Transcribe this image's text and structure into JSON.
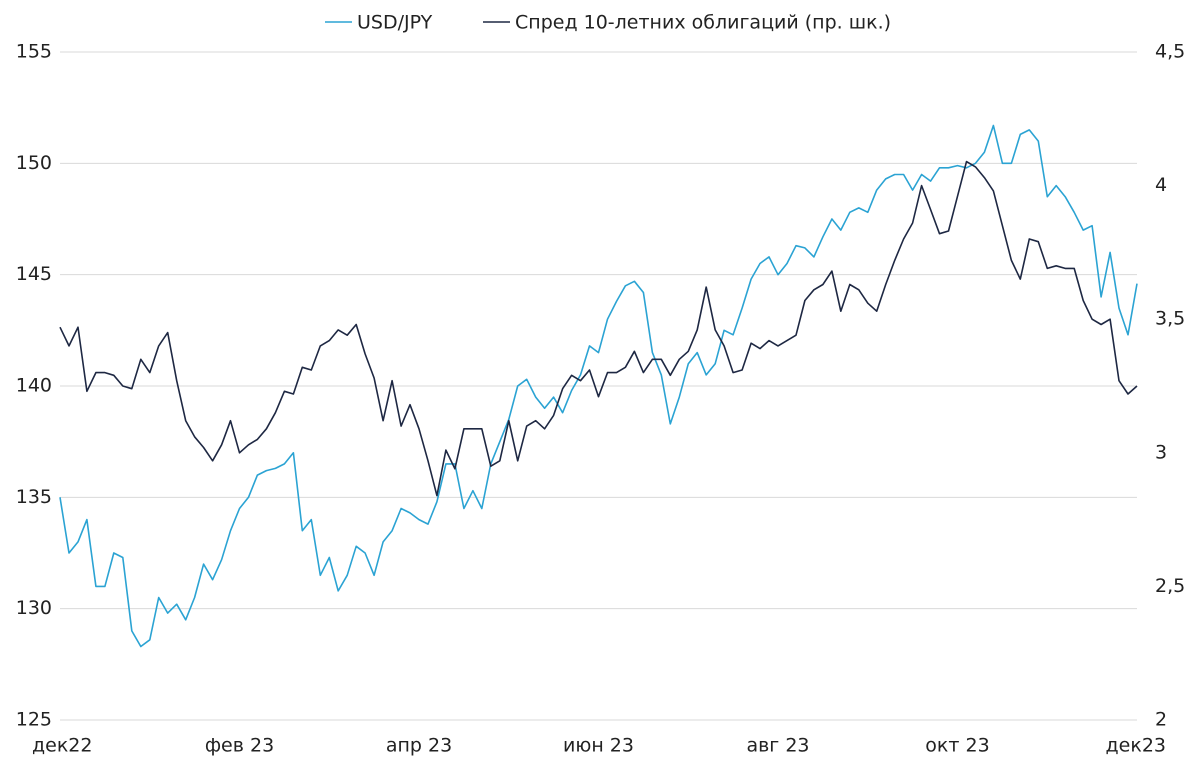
{
  "chart_data": {
    "type": "line",
    "categories": [
      "дек22",
      null,
      null,
      null,
      null,
      null,
      null,
      null,
      null,
      null,
      null,
      null,
      null,
      null,
      null,
      null,
      null,
      null,
      null,
      null,
      "фев 23",
      null,
      null,
      null,
      null,
      null,
      null,
      null,
      null,
      null,
      null,
      null,
      null,
      null,
      null,
      null,
      null,
      null,
      null,
      null,
      "апр 23",
      null,
      null,
      null,
      null,
      null,
      null,
      null,
      null,
      null,
      null,
      null,
      null,
      null,
      null,
      null,
      null,
      null,
      null,
      null,
      "июн 23",
      null,
      null,
      null,
      null,
      null,
      null,
      null,
      null,
      null,
      null,
      null,
      null,
      null,
      null,
      null,
      null,
      null,
      null,
      null,
      "авг 23",
      null,
      null,
      null,
      null,
      null,
      null,
      null,
      null,
      null,
      null,
      null,
      null,
      null,
      null,
      null,
      null,
      null,
      null,
      null,
      "окт 23",
      null,
      null,
      null,
      null,
      null,
      null,
      null,
      null,
      null,
      null,
      null,
      null,
      null,
      null,
      null,
      null,
      null,
      null,
      null,
      "дек23"
    ],
    "series": [
      {
        "name": "USD/JPY",
        "color": "#2ba3d3",
        "values": [
          135,
          132.5,
          133,
          134,
          131,
          131,
          132.5,
          132.3,
          129,
          128.3,
          128.6,
          130.5,
          129.8,
          130.2,
          129.5,
          130.5,
          132,
          131.3,
          132.2,
          133.5,
          134.5,
          135,
          136,
          136.2,
          136.3,
          136.5,
          137,
          133.5,
          134,
          131.5,
          132.3,
          130.8,
          131.5,
          132.8,
          132.5,
          131.5,
          133,
          133.5,
          134.5,
          134.3,
          134,
          133.8,
          134.8,
          136.5,
          136.5,
          134.5,
          135.3,
          134.5,
          136.5,
          137.5,
          138.5,
          140,
          140.3,
          139.5,
          139,
          139.5,
          138.8,
          139.8,
          140.5,
          141.8,
          141.5,
          143,
          143.8,
          144.5,
          144.7,
          144.2,
          141.5,
          140.5,
          138.3,
          139.5,
          141,
          141.5,
          140.5,
          141,
          142.5,
          142.3,
          143.5,
          144.8,
          145.5,
          145.8,
          145,
          145.5,
          146.3,
          146.2,
          145.8,
          146.7,
          147.5,
          147,
          147.8,
          148,
          147.8,
          148.8,
          149.3,
          149.5,
          149.5,
          148.8,
          149.5,
          149.2,
          149.8,
          149.8,
          149.9,
          149.8,
          150,
          150.5,
          151.7,
          150,
          150,
          151.3,
          151.5,
          151,
          148.5,
          149,
          148.5,
          147.8,
          147,
          147.2,
          144,
          146,
          143.5,
          142.3,
          144.6
        ]
      },
      {
        "name": "Спред 10-летних облигаций (пр. шк.)",
        "color": "#1e2843",
        "axis": "y2",
        "values": [
          3.47,
          3.4,
          3.47,
          3.23,
          3.3,
          3.3,
          3.29,
          3.25,
          3.24,
          3.35,
          3.3,
          3.4,
          3.45,
          3.27,
          3.12,
          3.06,
          3.02,
          2.97,
          3.03,
          3.12,
          3,
          3.03,
          3.05,
          3.09,
          3.15,
          3.23,
          3.22,
          3.32,
          3.31,
          3.4,
          3.42,
          3.46,
          3.44,
          3.48,
          3.37,
          3.28,
          3.12,
          3.27,
          3.1,
          3.18,
          3.09,
          2.97,
          2.84,
          3.01,
          2.94,
          3.09,
          3.09,
          3.09,
          2.95,
          2.97,
          3.12,
          2.97,
          3.1,
          3.12,
          3.09,
          3.14,
          3.24,
          3.29,
          3.27,
          3.31,
          3.21,
          3.3,
          3.3,
          3.32,
          3.38,
          3.3,
          3.35,
          3.35,
          3.29,
          3.35,
          3.38,
          3.46,
          3.62,
          3.46,
          3.4,
          3.3,
          3.31,
          3.41,
          3.39,
          3.42,
          3.4,
          3.42,
          3.44,
          3.57,
          3.61,
          3.63,
          3.68,
          3.53,
          3.63,
          3.61,
          3.56,
          3.53,
          3.63,
          3.72,
          3.8,
          3.86,
          4,
          3.91,
          3.82,
          3.83,
          3.96,
          4.09,
          4.07,
          4.03,
          3.98,
          3.85,
          3.72,
          3.65,
          3.8,
          3.79,
          3.69,
          3.7,
          3.69,
          3.69,
          3.57,
          3.5,
          3.48,
          3.5,
          3.27,
          3.22,
          3.25
        ]
      }
    ],
    "ylim": [
      125,
      155
    ],
    "yticks": [
      125,
      130,
      135,
      140,
      145,
      150,
      155
    ],
    "y2lim": [
      2,
      4.5
    ],
    "y2ticks": [
      2,
      {
        "value": 2.5,
        "label": "2,5"
      },
      3,
      {
        "value": 3.5,
        "label": "3,5"
      },
      4,
      {
        "value": 4.5,
        "label": "4,5"
      }
    ],
    "grid": true,
    "legend": "top"
  }
}
